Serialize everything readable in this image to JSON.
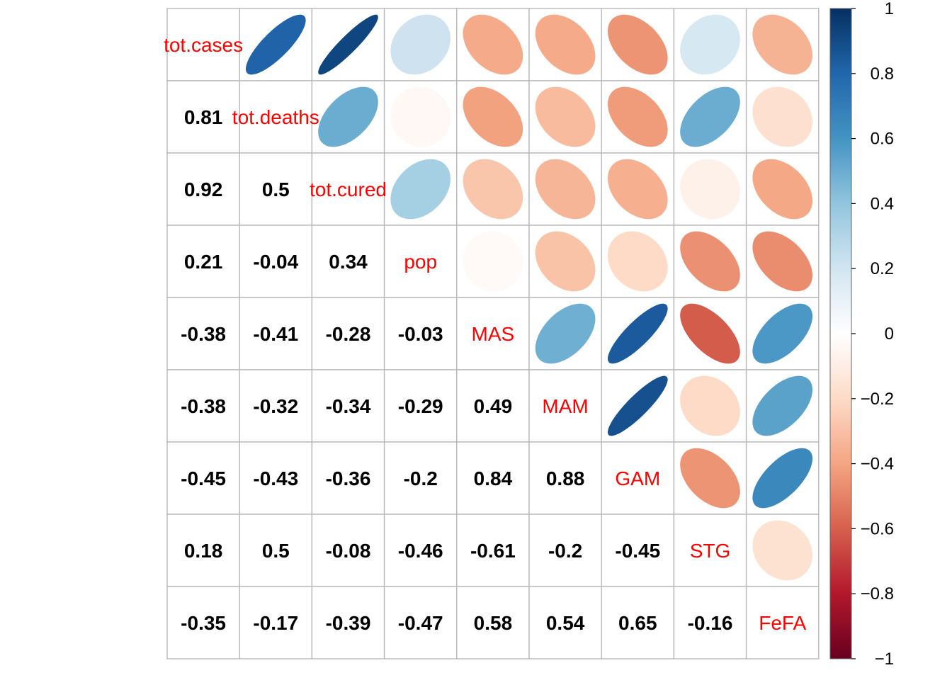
{
  "chart_data": {
    "type": "heatmap",
    "subtype": "correlation-matrix",
    "upper_method": "ellipse",
    "lower_method": "number",
    "variables": [
      "tot.cases",
      "tot.deaths",
      "tot.cured",
      "pop",
      "MAS",
      "MAM",
      "GAM",
      "STG",
      "FeFA"
    ],
    "diagonal_label_color": "#ff0000",
    "correlation": [
      [
        1,
        0.81,
        0.92,
        0.21,
        -0.38,
        -0.38,
        -0.45,
        0.18,
        -0.35
      ],
      [
        0.81,
        1,
        0.5,
        -0.04,
        -0.41,
        -0.32,
        -0.43,
        0.5,
        -0.17
      ],
      [
        0.92,
        0.5,
        1,
        0.34,
        -0.28,
        -0.34,
        -0.36,
        -0.08,
        -0.39
      ],
      [
        0.21,
        -0.04,
        0.34,
        1,
        -0.03,
        -0.29,
        -0.2,
        -0.46,
        -0.47
      ],
      [
        -0.38,
        -0.41,
        -0.28,
        -0.03,
        1,
        0.49,
        0.84,
        -0.61,
        0.58
      ],
      [
        -0.38,
        -0.32,
        -0.34,
        -0.29,
        0.49,
        1,
        0.88,
        -0.2,
        0.54
      ],
      [
        -0.45,
        -0.43,
        -0.36,
        -0.2,
        0.84,
        0.88,
        1,
        -0.45,
        0.65
      ],
      [
        0.18,
        0.5,
        -0.08,
        -0.46,
        -0.61,
        -0.2,
        -0.45,
        1,
        -0.16
      ],
      [
        -0.35,
        -0.17,
        -0.39,
        -0.47,
        0.58,
        0.54,
        0.65,
        -0.16,
        1
      ]
    ],
    "lower_labels": [
      [],
      [
        "0.81"
      ],
      [
        "0.92",
        "0.5"
      ],
      [
        "0.21",
        "-0.04",
        "0.34"
      ],
      [
        "-0.38",
        "-0.41",
        "-0.28",
        "-0.03"
      ],
      [
        "-0.38",
        "-0.32",
        "-0.34",
        "-0.29",
        "0.49"
      ],
      [
        "-0.45",
        "-0.43",
        "-0.36",
        "-0.2",
        "0.84",
        "0.88"
      ],
      [
        "0.18",
        "0.5",
        "-0.08",
        "-0.46",
        "-0.61",
        "-0.2",
        "-0.45"
      ],
      [
        "-0.35",
        "-0.17",
        "-0.39",
        "-0.47",
        "0.58",
        "0.54",
        "0.65",
        "-0.16"
      ]
    ],
    "colorbar": {
      "range": [
        -1,
        1
      ],
      "ticks": [
        1,
        0.8,
        0.6,
        0.4,
        0.2,
        0,
        -0.2,
        -0.4,
        -0.6,
        -0.8,
        -1
      ],
      "tick_labels": [
        "1",
        "0.8",
        "0.6",
        "0.4",
        "0.2",
        "0",
        "−0.2",
        "−0.4",
        "−0.6",
        "−0.8",
        "−1"
      ],
      "palette": [
        "#67001F",
        "#B2182B",
        "#D6604D",
        "#F4A582",
        "#FDDBC7",
        "#FFFFFF",
        "#D1E5F0",
        "#92C5DE",
        "#4393C3",
        "#2166AC",
        "#053061"
      ]
    },
    "grid": true,
    "legend_position": "right"
  }
}
